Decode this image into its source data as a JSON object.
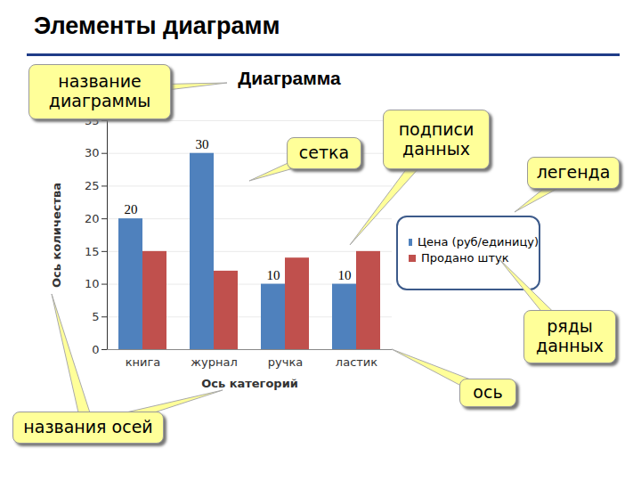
{
  "header": {
    "title": "Элементы диаграмм"
  },
  "chart_data": {
    "type": "bar",
    "title": "Диаграмма",
    "categories": [
      "книга",
      "журнал",
      "ручка",
      "ластик"
    ],
    "series": [
      {
        "name": "Цена (руб/единицу)",
        "color": "#4f81bd",
        "values": [
          20,
          30,
          10,
          10
        ],
        "data_labels": true
      },
      {
        "name": "Продано штук",
        "color": "#c0504d",
        "values": [
          15,
          12,
          14,
          15
        ]
      }
    ],
    "x_label": "Ось категорий",
    "y_label": "Ось количества",
    "ylim": [
      0,
      35
    ],
    "yticks": [
      0,
      5,
      10,
      15,
      20,
      25,
      30,
      35
    ],
    "grid": true,
    "legend": "right",
    "annotations": [
      "название диаграммы",
      "сетка",
      "подписи данных",
      "легенда",
      "ряды данных",
      "ось",
      "названия осей"
    ]
  }
}
